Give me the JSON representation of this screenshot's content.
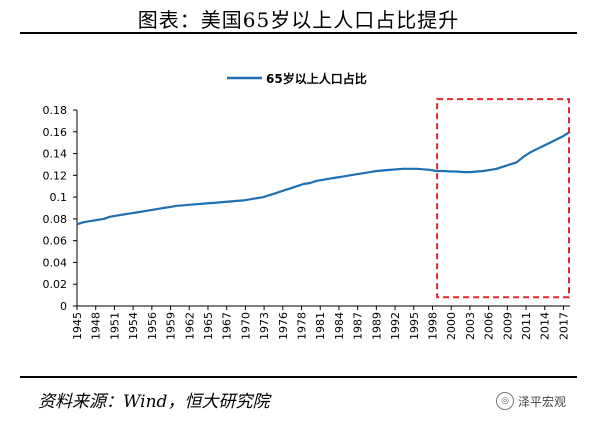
{
  "figure": {
    "title": "图表：美国65岁以上人口占比提升",
    "source": "资料来源：Wind，恒大研究院",
    "watermark": "泽平宏观"
  },
  "chart_data": {
    "type": "line",
    "title": "",
    "legend": [
      "65岁以上人口占比"
    ],
    "legend_position": "top-center",
    "series": [
      {
        "name": "65岁以上人口占比",
        "color": "#1f6fb2",
        "x": [
          1945,
          1946,
          1947,
          1948,
          1949,
          1950,
          1951,
          1952,
          1953,
          1954,
          1955,
          1956,
          1957,
          1958,
          1959,
          1960,
          1961,
          1962,
          1963,
          1964,
          1965,
          1966,
          1967,
          1968,
          1969,
          1970,
          1971,
          1972,
          1973,
          1974,
          1975,
          1976,
          1977,
          1978,
          1979,
          1980,
          1981,
          1982,
          1983,
          1984,
          1985,
          1986,
          1987,
          1988,
          1989,
          1990,
          1991,
          1992,
          1993,
          1994,
          1995,
          1996,
          1997,
          1998,
          1999,
          2000,
          2001,
          2002,
          2003,
          2004,
          2005,
          2006,
          2007,
          2008,
          2009,
          2010,
          2011,
          2012,
          2013,
          2014,
          2015,
          2016,
          2017,
          2018,
          2019
        ],
        "values": [
          0.075,
          0.077,
          0.078,
          0.079,
          0.08,
          0.082,
          0.083,
          0.084,
          0.085,
          0.086,
          0.087,
          0.088,
          0.089,
          0.09,
          0.091,
          0.092,
          0.0925,
          0.093,
          0.0935,
          0.094,
          0.0945,
          0.095,
          0.0955,
          0.096,
          0.0965,
          0.097,
          0.098,
          0.099,
          0.1,
          0.102,
          0.104,
          0.106,
          0.108,
          0.11,
          0.112,
          0.113,
          0.115,
          0.116,
          0.117,
          0.118,
          0.119,
          0.12,
          0.121,
          0.122,
          0.123,
          0.124,
          0.1245,
          0.125,
          0.1255,
          0.126,
          0.126,
          0.126,
          0.1255,
          0.125,
          0.124,
          0.124,
          0.1235,
          0.1235,
          0.123,
          0.123,
          0.1235,
          0.124,
          0.125,
          0.126,
          0.128,
          0.13,
          0.132,
          0.137,
          0.141,
          0.144,
          0.147,
          0.15,
          0.153,
          0.156,
          0.16
        ]
      }
    ],
    "x_ticks": [
      "1945",
      "1948",
      "1951",
      "1954",
      "1956",
      "1959",
      "1962",
      "1965",
      "1967",
      "1970",
      "1973",
      "1976",
      "1978",
      "1981",
      "1984",
      "1987",
      "1989",
      "1992",
      "1995",
      "1998",
      "2000",
      "2003",
      "2006",
      "2009",
      "2011",
      "2014",
      "2017"
    ],
    "y_ticks": [
      "0",
      "0.02",
      "0.04",
      "0.06",
      "0.08",
      "0.1",
      "0.12",
      "0.14",
      "0.16",
      "0.18"
    ],
    "ylim": [
      0,
      0.18
    ],
    "xlim": [
      1945,
      2019
    ],
    "grid": false,
    "highlight": {
      "x_range": [
        1999.5,
        2020.5
      ],
      "y_range": [
        0.008,
        0.19
      ],
      "color": "#e0262b",
      "style": "dashed"
    }
  }
}
